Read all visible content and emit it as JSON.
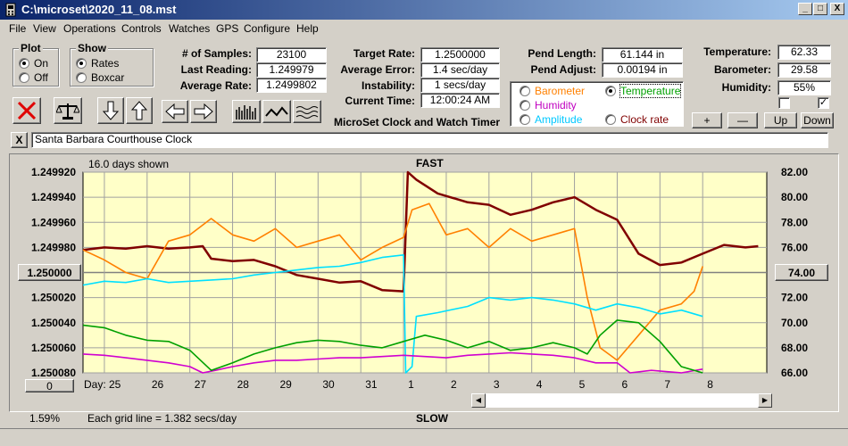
{
  "window": {
    "title": "C:\\microset\\2020_11_08.mst",
    "min_glyph": "_",
    "max_glyph": "□",
    "close_glyph": "X"
  },
  "menu": [
    "File",
    "View",
    "Operations",
    "Controls",
    "Watches",
    "GPS",
    "Configure",
    "Help"
  ],
  "plot_group": {
    "title": "Plot",
    "options": [
      "On",
      "Off"
    ],
    "selected": "On"
  },
  "show_group": {
    "title": "Show",
    "options": [
      "Rates",
      "Boxcar"
    ],
    "selected": "Rates"
  },
  "stats": {
    "samples_label": "# of Samples:",
    "samples": "23100",
    "last_label": "Last Reading:",
    "last": "1.249979",
    "avg_rate_label": "Average Rate:",
    "avg_rate": "1.2499802",
    "target_label": "Target Rate:",
    "target": "1.2500000",
    "avg_err_label": "Average Error:",
    "avg_err": "1.4 sec/day",
    "instab_label": "Instability:",
    "instab": "1 secs/day",
    "time_label": "Current Time:",
    "time": "12:00:24 AM",
    "pend_len_label": "Pend Length:",
    "pend_len": "61.144 in",
    "pend_adj_label": "Pend Adjust:",
    "pend_adj": "0.00194 in",
    "temp_label": "Temperature:",
    "temp": "62.33",
    "baro_label": "Barometer:",
    "baro": "29.58",
    "hum_label": "Humidity:",
    "hum": "55%"
  },
  "app_title": "MicroSet Clock and Watch Timer",
  "series_options": [
    {
      "label": "Barometer",
      "color": "#ff8000",
      "selected": false
    },
    {
      "label": "Temperature",
      "color": "#00a000",
      "selected": true
    },
    {
      "label": "Humidity",
      "color": "#c000c0",
      "selected": false
    },
    {
      "label": "Amplitude",
      "color": "#00c8ff",
      "selected": false
    },
    {
      "label": "Clock rate",
      "color": "#800000",
      "selected": false
    }
  ],
  "right_buttons": {
    "plus": "+",
    "minus": "—",
    "up": "Up",
    "down": "Down"
  },
  "checkboxes": [
    {
      "checked": false
    },
    {
      "checked": true,
      "glyph": "✓"
    }
  ],
  "clock_name": "Santa Barbara Courthouse Clock",
  "clock_close": "X",
  "plot": {
    "days_shown": "16.0 days shown",
    "fast_label": "FAST",
    "slow_label": "SLOW",
    "grid_note": "Each grid line = 1.382 secs/day",
    "left_value_button": "1.250000",
    "right_value_button": "74.00",
    "bottom_left_button": "0",
    "day_label": "Day:",
    "percent": "1.59%"
  },
  "chart_data": {
    "type": "line",
    "left_axis": {
      "ticks": [
        "1.249920",
        "1.249940",
        "1.249960",
        "1.249980",
        "1.250000",
        "1.250020",
        "1.250040",
        "1.250060",
        "1.250080"
      ],
      "ylim": [
        1.24992,
        1.25008
      ],
      "inverted": true
    },
    "right_axis": {
      "ticks": [
        "82.00",
        "80.00",
        "78.00",
        "76.00",
        "74.00",
        "72.00",
        "70.00",
        "68.00",
        "66.00"
      ],
      "ylim": [
        66,
        82
      ]
    },
    "x_ticks": [
      "25",
      "26",
      "27",
      "28",
      "29",
      "30",
      "31",
      "1",
      "2",
      "3",
      "4",
      "5",
      "6",
      "7",
      "8"
    ],
    "xlim": [
      24.5,
      40.5
    ],
    "series": [
      {
        "color": "#800000",
        "axis": "left",
        "points": [
          [
            24.5,
            1.249982
          ],
          [
            25.0,
            1.24998
          ],
          [
            25.5,
            1.249981
          ],
          [
            26.0,
            1.249979
          ],
          [
            26.5,
            1.249981
          ],
          [
            27.0,
            1.24998
          ],
          [
            27.3,
            1.249979
          ],
          [
            27.5,
            1.249989
          ],
          [
            28.0,
            1.249991
          ],
          [
            28.5,
            1.24999
          ],
          [
            29.0,
            1.249995
          ],
          [
            29.5,
            1.250002
          ],
          [
            30.0,
            1.250005
          ],
          [
            30.5,
            1.250008
          ],
          [
            31.0,
            1.250007
          ],
          [
            31.5,
            1.250014
          ],
          [
            32.0,
            1.250015
          ],
          [
            32.1,
            1.24992
          ],
          [
            32.3,
            1.249926
          ],
          [
            32.8,
            1.249937
          ],
          [
            33.5,
            1.249944
          ],
          [
            34.0,
            1.249946
          ],
          [
            34.5,
            1.249954
          ],
          [
            35.0,
            1.24995
          ],
          [
            35.5,
            1.249944
          ],
          [
            36.0,
            1.24994
          ],
          [
            36.5,
            1.24995
          ],
          [
            37.0,
            1.249958
          ],
          [
            37.5,
            1.249985
          ],
          [
            38.0,
            1.249994
          ],
          [
            38.5,
            1.249992
          ],
          [
            39.0,
            1.249985
          ],
          [
            39.5,
            1.249978
          ],
          [
            40.0,
            1.24998
          ],
          [
            40.3,
            1.249979
          ]
        ]
      },
      {
        "color": "#ff8000",
        "axis": "right",
        "points": [
          [
            24.5,
            75.8
          ],
          [
            25.0,
            75.0
          ],
          [
            25.5,
            74.0
          ],
          [
            26.0,
            73.5
          ],
          [
            26.5,
            76.5
          ],
          [
            27.0,
            77.0
          ],
          [
            27.5,
            78.3
          ],
          [
            28.0,
            77.0
          ],
          [
            28.5,
            76.5
          ],
          [
            29.0,
            77.5
          ],
          [
            29.5,
            76.0
          ],
          [
            30.0,
            76.5
          ],
          [
            30.5,
            77.0
          ],
          [
            31.0,
            75.0
          ],
          [
            31.5,
            76.0
          ],
          [
            32.0,
            76.8
          ],
          [
            32.2,
            79.0
          ],
          [
            32.6,
            79.5
          ],
          [
            33.0,
            77.0
          ],
          [
            33.5,
            77.5
          ],
          [
            34.0,
            76.0
          ],
          [
            34.5,
            77.5
          ],
          [
            35.0,
            76.5
          ],
          [
            35.5,
            77.0
          ],
          [
            36.0,
            77.5
          ],
          [
            36.3,
            72.0
          ],
          [
            36.6,
            68.0
          ],
          [
            37.0,
            67.0
          ],
          [
            37.5,
            69.0
          ],
          [
            38.0,
            71.0
          ],
          [
            38.5,
            71.5
          ],
          [
            38.8,
            72.5
          ],
          [
            39.0,
            74.5
          ]
        ]
      },
      {
        "color": "#00e0ff",
        "axis": "right",
        "points": [
          [
            24.5,
            73.0
          ],
          [
            25.0,
            73.3
          ],
          [
            25.5,
            73.2
          ],
          [
            26.0,
            73.5
          ],
          [
            26.5,
            73.2
          ],
          [
            27.0,
            73.3
          ],
          [
            27.5,
            73.4
          ],
          [
            28.0,
            73.5
          ],
          [
            28.5,
            73.8
          ],
          [
            29.0,
            74.0
          ],
          [
            29.5,
            74.2
          ],
          [
            30.0,
            74.4
          ],
          [
            30.5,
            74.5
          ],
          [
            31.0,
            74.8
          ],
          [
            31.5,
            75.2
          ],
          [
            32.0,
            75.4
          ],
          [
            32.05,
            66.0
          ],
          [
            32.2,
            66.5
          ],
          [
            32.3,
            70.5
          ],
          [
            32.8,
            70.8
          ],
          [
            33.5,
            71.3
          ],
          [
            34.0,
            72.0
          ],
          [
            34.5,
            71.8
          ],
          [
            35.0,
            72.0
          ],
          [
            35.5,
            71.8
          ],
          [
            36.0,
            71.5
          ],
          [
            36.5,
            71.0
          ],
          [
            37.0,
            71.5
          ],
          [
            37.5,
            71.2
          ],
          [
            38.0,
            70.7
          ],
          [
            38.5,
            71.0
          ],
          [
            39.0,
            70.5
          ]
        ]
      },
      {
        "color": "#d000d0",
        "axis": "left",
        "points": [
          [
            24.5,
            1.250065
          ],
          [
            25.0,
            1.250066
          ],
          [
            25.5,
            1.250068
          ],
          [
            26.0,
            1.25007
          ],
          [
            26.5,
            1.250072
          ],
          [
            27.0,
            1.250075
          ],
          [
            27.3,
            1.25008
          ],
          [
            27.6,
            1.250078
          ],
          [
            28.0,
            1.250075
          ],
          [
            28.5,
            1.250072
          ],
          [
            29.0,
            1.25007
          ],
          [
            29.5,
            1.25007
          ],
          [
            30.0,
            1.250069
          ],
          [
            30.5,
            1.250068
          ],
          [
            31.0,
            1.250068
          ],
          [
            31.5,
            1.250067
          ],
          [
            32.0,
            1.250066
          ],
          [
            32.5,
            1.250067
          ],
          [
            33.0,
            1.250068
          ],
          [
            33.5,
            1.250066
          ],
          [
            34.0,
            1.250065
          ],
          [
            34.5,
            1.250064
          ],
          [
            35.0,
            1.250065
          ],
          [
            35.5,
            1.250066
          ],
          [
            36.0,
            1.250068
          ],
          [
            36.5,
            1.250072
          ],
          [
            37.0,
            1.250072
          ],
          [
            37.3,
            1.25008
          ],
          [
            37.8,
            1.250078
          ],
          [
            38.5,
            1.25008
          ],
          [
            39.0,
            1.250077
          ]
        ]
      },
      {
        "color": "#00a000",
        "axis": "right",
        "points": [
          [
            24.5,
            69.8
          ],
          [
            25.0,
            69.6
          ],
          [
            25.5,
            69.0
          ],
          [
            26.0,
            68.6
          ],
          [
            26.5,
            68.5
          ],
          [
            27.0,
            67.8
          ],
          [
            27.5,
            66.2
          ],
          [
            28.0,
            66.8
          ],
          [
            28.5,
            67.5
          ],
          [
            29.0,
            68.0
          ],
          [
            29.5,
            68.4
          ],
          [
            30.0,
            68.6
          ],
          [
            30.5,
            68.5
          ],
          [
            31.0,
            68.2
          ],
          [
            31.5,
            68.0
          ],
          [
            32.0,
            68.5
          ],
          [
            32.5,
            69.0
          ],
          [
            33.0,
            68.6
          ],
          [
            33.5,
            68.0
          ],
          [
            34.0,
            68.5
          ],
          [
            34.5,
            67.8
          ],
          [
            35.0,
            68.0
          ],
          [
            35.5,
            68.4
          ],
          [
            36.0,
            68.0
          ],
          [
            36.3,
            67.5
          ],
          [
            36.6,
            69.0
          ],
          [
            37.0,
            70.2
          ],
          [
            37.5,
            70.0
          ],
          [
            38.0,
            68.5
          ],
          [
            38.5,
            66.5
          ],
          [
            39.0,
            66.0
          ]
        ]
      }
    ]
  }
}
